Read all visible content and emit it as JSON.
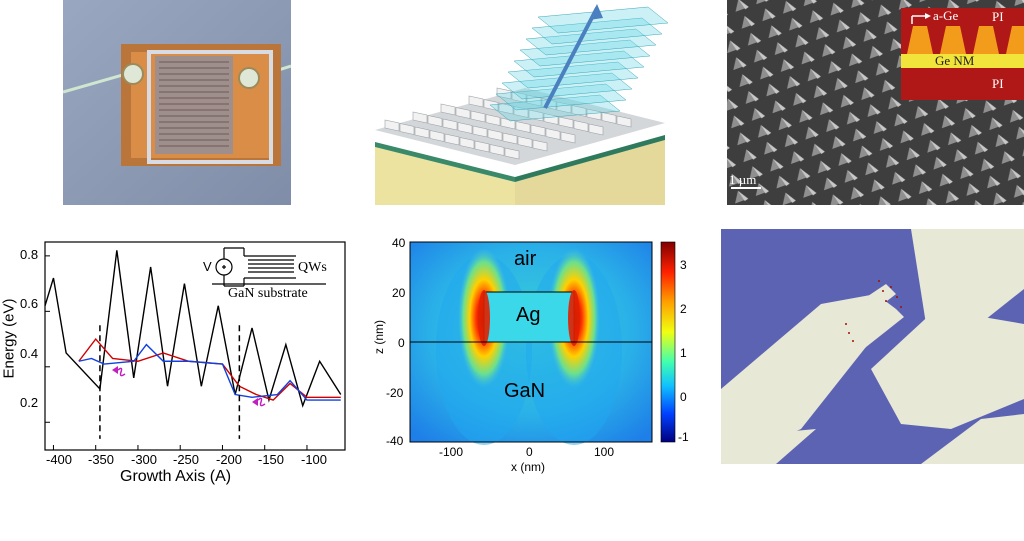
{
  "panels": {
    "sem": {
      "inset_top": "PI",
      "inset_arrow_label": "a-Ge",
      "inset_mid": "Ge NM",
      "inset_bottom": "PI",
      "scale_bar": "1 µm"
    },
    "energy_plot": {
      "ylabel": "Energy (eV)",
      "xlabel": "Growth Axis (A)",
      "yticks": [
        "0.8",
        "0.6",
        "0.4",
        "0.2"
      ],
      "xticks": [
        "-400",
        "-350",
        "-300",
        "-250",
        "-200",
        "-150",
        "-100"
      ],
      "inset_source": "V",
      "inset_qws": "QWs",
      "inset_substrate": "GaN substrate"
    },
    "field_map": {
      "ylabel": "z (nm)",
      "xlabel": "x (nm)",
      "yticks": [
        "40",
        "20",
        "0",
        "-20",
        "-40"
      ],
      "xticks": [
        "-100",
        "0",
        "100"
      ],
      "region_air": "air",
      "region_ag": "Ag",
      "region_gan": "GaN",
      "cbar_ticks": [
        "3",
        "2",
        "1",
        "0",
        "-1"
      ]
    }
  },
  "chart_data": {
    "type": "line",
    "xlabel": "Growth Axis (A)",
    "ylabel": "Energy (eV)",
    "xlim": [
      -410,
      -55
    ],
    "ylim": [
      0.1,
      0.85
    ],
    "series": [
      {
        "color": "#000000",
        "x": [
          -410,
          -400,
          -385,
          -345,
          -325,
          -305,
          -285,
          -265,
          -245,
          -225,
          -205,
          -185,
          -165,
          -145,
          -125,
          -105,
          -85,
          -60
        ],
        "y": [
          0.62,
          0.72,
          0.45,
          0.32,
          0.82,
          0.36,
          0.76,
          0.33,
          0.7,
          0.33,
          0.62,
          0.3,
          0.54,
          0.28,
          0.48,
          0.26,
          0.42,
          0.3
        ]
      },
      {
        "color": "#d00000",
        "x": [
          -370,
          -350,
          -330,
          -300,
          -270,
          -240,
          -200,
          -180,
          -160,
          -140,
          -120,
          -100,
          -80,
          -60
        ],
        "y": [
          0.42,
          0.5,
          0.43,
          0.42,
          0.45,
          0.42,
          0.41,
          0.33,
          0.3,
          0.28,
          0.34,
          0.29,
          0.29,
          0.29
        ]
      },
      {
        "color": "#1040e0",
        "x": [
          -370,
          -355,
          -340,
          -305,
          -290,
          -270,
          -240,
          -200,
          -185,
          -165,
          -135,
          -120,
          -100,
          -60
        ],
        "y": [
          0.42,
          0.43,
          0.41,
          0.42,
          0.48,
          0.42,
          0.42,
          0.41,
          0.3,
          0.29,
          0.3,
          0.35,
          0.28,
          0.28
        ]
      }
    ],
    "dashed_lines_x": [
      -345,
      -180
    ]
  }
}
